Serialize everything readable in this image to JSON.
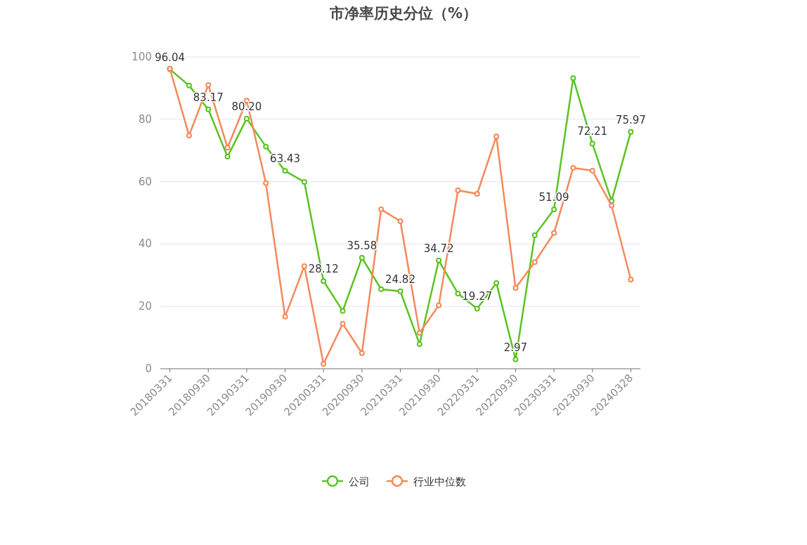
{
  "chart_data": {
    "type": "line",
    "title": "市净率历史分位（%）",
    "categories": [
      "20180331",
      null,
      "20180930",
      null,
      "20190331",
      null,
      "20190930",
      null,
      "20200331",
      null,
      "20200930",
      null,
      "20210331",
      null,
      "20210930",
      null,
      "20220331",
      null,
      "20220930",
      null,
      "20230331",
      null,
      "20230930",
      null,
      "20240328"
    ],
    "series": [
      {
        "name": "公司",
        "color": "#5bc322",
        "values": [
          96.04,
          90.8,
          83.17,
          68.0,
          80.2,
          71.2,
          63.43,
          59.9,
          28.12,
          18.5,
          35.58,
          25.5,
          24.82,
          7.9,
          34.72,
          24.1,
          19.27,
          27.5,
          2.97,
          42.8,
          51.09,
          93.2,
          72.21,
          53.8,
          75.97
        ],
        "value_labels": [
          "96.04",
          null,
          "83.17",
          null,
          "80.20",
          null,
          "63.43",
          null,
          "28.12",
          null,
          "35.58",
          null,
          "24.82",
          null,
          "34.72",
          null,
          "19.27",
          null,
          "2.97",
          null,
          "51.09",
          null,
          "72.21",
          null,
          "75.97"
        ]
      },
      {
        "name": "行业中位数",
        "color": "#f5895a",
        "values": [
          96.2,
          74.8,
          91.0,
          70.9,
          86.0,
          59.5,
          16.7,
          32.9,
          1.6,
          14.4,
          5.0,
          51.1,
          47.3,
          11.5,
          20.3,
          57.2,
          56.1,
          74.5,
          25.9,
          34.2,
          43.5,
          64.4,
          63.5,
          52.3,
          28.6
        ]
      }
    ],
    "ylim": [
      0,
      100
    ],
    "yticks": [
      0,
      20,
      40,
      60,
      80,
      100
    ],
    "grid": "y",
    "legend": "bottom",
    "marker": "circle",
    "line_style": "solid"
  }
}
